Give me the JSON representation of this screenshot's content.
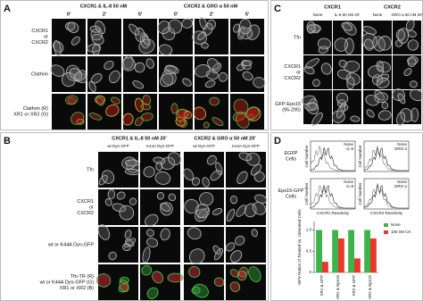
{
  "panel_a": {
    "letter": "A",
    "groups": [
      "CXCR1 & IL-8 50 nM",
      "CXCR2 & GRO α 50 nM"
    ],
    "times": [
      "0'",
      "2'",
      "5'",
      "0'",
      "2'",
      "5'"
    ],
    "rows": [
      [
        "CXCR1",
        "or",
        "CXCR2"
      ],
      [
        "Clathrin"
      ],
      [
        "Clathrin (R)",
        "XR1 or XR2 (G)"
      ]
    ]
  },
  "panel_b": {
    "letter": "B",
    "groups": [
      "CXCR1 & IL-8 50 nM 20'",
      "CXCR2 & GRO α 50 nM 20'"
    ],
    "columns": [
      "wt Dyn-GFP",
      "K44A Dyn-GFP",
      "wt Dyn-GFP",
      "K44A Dyn-GFP"
    ],
    "rows": [
      [
        "Tfn"
      ],
      [
        "CXCR1",
        "or",
        "CXCR2"
      ],
      [
        "wt or K44A Dyn-GFP"
      ],
      [
        "Tfn-TR (R)",
        "wt or K44A Dyn-GFP (G)",
        "XR1 or XR2 (B)"
      ]
    ]
  },
  "panel_c": {
    "letter": "C",
    "groups": [
      "CXCR1",
      "CXCR2"
    ],
    "columns": [
      "None",
      "IL-8 50 nM 20'",
      "None",
      "GRO α 50 nM 20'"
    ],
    "rows": [
      [
        "Tfn"
      ],
      [
        "CXCR1",
        "or",
        "CXCR2"
      ],
      [
        "GFP-Eps15",
        "(95-295)"
      ]
    ]
  },
  "panel_d": {
    "letter": "D",
    "histogram_rows": [
      [
        "EGFP",
        "Cells"
      ],
      [
        "Eps15-GFP",
        "Cells"
      ]
    ],
    "y_label": "Cell Number",
    "x_labels": [
      "CXCR1 Reactivity",
      "CXCR2 Reactivity"
    ],
    "legends": [
      [
        "None",
        "IL-8"
      ],
      [
        "None",
        "GRO α"
      ]
    ]
  },
  "chart_data": {
    "type": "bar",
    "y_label": "MFV Ratios of Treated vs. Untreated Cells",
    "categories": [
      "XR1 & GFP",
      "XR1 & Eps15",
      "XR2 & GFP",
      "XR2 & Eps15"
    ],
    "series": [
      {
        "name": "None",
        "color": "#3cb44b",
        "values": [
          1.0,
          1.0,
          1.0,
          1.0
        ]
      },
      {
        "name": "100 nM CK",
        "color": "#e8382a",
        "values": [
          0.25,
          0.8,
          0.33,
          0.8
        ]
      }
    ],
    "ylim": [
      0,
      1.2
    ],
    "yticks": [
      0,
      0.5,
      {
        "value": 1,
        "label": "1.0"
      }
    ]
  }
}
